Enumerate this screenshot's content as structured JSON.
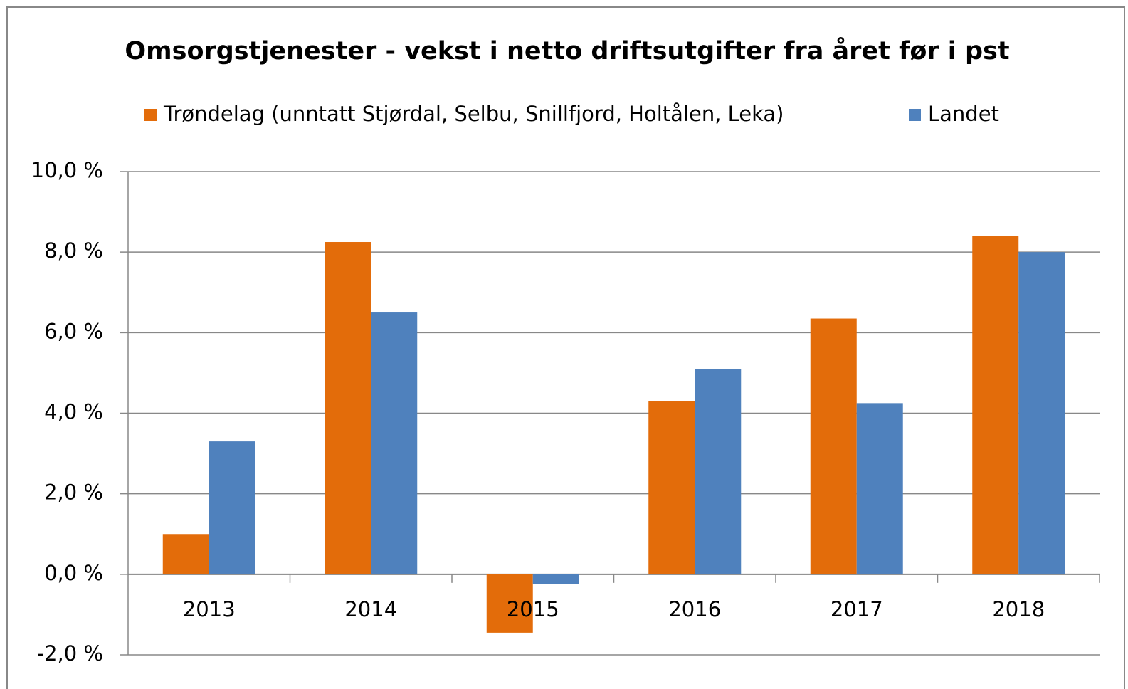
{
  "chart_data": {
    "type": "bar",
    "title": "Omsorgstjenester - vekst i netto driftsutgifter fra året før i pst",
    "categories": [
      "2013",
      "2014",
      "2015",
      "2016",
      "2017",
      "2018"
    ],
    "series": [
      {
        "name": "Trøndelag (unntatt Stjørdal, Selbu, Snillfjord, Holtålen, Leka)",
        "color": "#e36c0a",
        "values": [
          1.0,
          8.25,
          -1.45,
          4.3,
          6.35,
          8.4
        ]
      },
      {
        "name": "Landet",
        "color": "#4f81bd",
        "values": [
          3.3,
          6.5,
          -0.25,
          5.1,
          4.25,
          8.0
        ]
      }
    ],
    "ylim": [
      -2,
      10
    ],
    "yticks": [
      {
        "value": -2,
        "label": "-2,0 %"
      },
      {
        "value": 0,
        "label": "0,0 %"
      },
      {
        "value": 2,
        "label": "2,0 %"
      },
      {
        "value": 4,
        "label": "4,0 %"
      },
      {
        "value": 6,
        "label": "6,0 %"
      },
      {
        "value": 8,
        "label": "8,0 %"
      },
      {
        "value": 10,
        "label": "10,0 %"
      }
    ],
    "grid": true,
    "legend": "top"
  }
}
